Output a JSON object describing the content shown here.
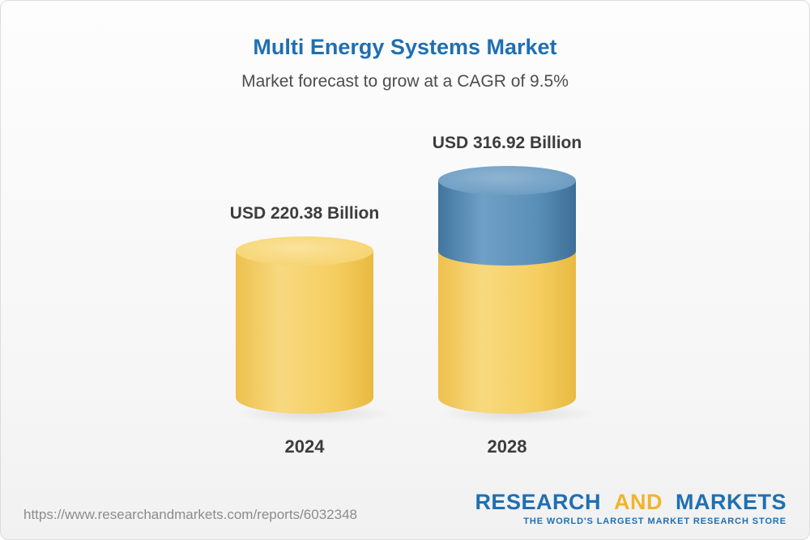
{
  "chart": {
    "title": "Multi Energy Systems Market",
    "subtitle": "Market forecast to grow at a CAGR of 9.5%",
    "bars": [
      {
        "year": "2024",
        "label": "USD 220.38 Billion"
      },
      {
        "year": "2028",
        "label": "USD 316.92 Billion"
      }
    ]
  },
  "chart_data": {
    "type": "bar",
    "subtype": "3d-cylinder",
    "title": "Multi Energy Systems Market",
    "subtitle": "Market forecast to grow at a CAGR of 9.5%",
    "cagr_percent": 9.5,
    "categories": [
      "2024",
      "2028"
    ],
    "values": [
      220.38,
      316.92
    ],
    "units": "USD Billion",
    "data_labels": [
      "USD 220.38 Billion",
      "USD 316.92 Billion"
    ],
    "stacked_2028": {
      "base_matches_2024": 220.38,
      "growth_segment": 96.54
    },
    "ylim": [
      0,
      350
    ],
    "grid": false,
    "legend": "none",
    "series_colors": {
      "base": "#F5CE62",
      "growth": "#4E81AC"
    }
  },
  "footer": {
    "report_url": "https://www.researchandmarkets.com/reports/6032348",
    "logo": {
      "word_research": "RESEARCH",
      "word_and": "AND",
      "word_markets": "MARKETS",
      "tagline": "THE WORLD'S LARGEST MARKET RESEARCH STORE"
    }
  },
  "colors": {
    "title_blue": "#1F6FB2",
    "logo_yellow": "#F0B42D",
    "bar_yellow": "#F5CE62",
    "bar_blue": "#4E81AC",
    "text_dark": "#3C3C3C",
    "url_gray": "#8C8C8C"
  }
}
